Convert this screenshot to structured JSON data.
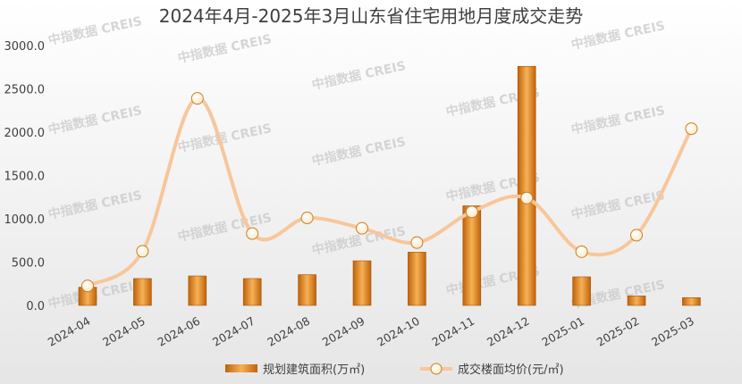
{
  "watermark": "中指数据 CREIS",
  "colors": {
    "bar_dark": "#c0620a",
    "bar_light": "#f6b255",
    "line": "#f8c69a",
    "marker_fill": "#fbe7c8",
    "marker_stroke": "#c8801e"
  },
  "chart_data": {
    "type": "bar+line",
    "title": "2024年4月-2025年3月山东省住宅用地月度成交走势",
    "categories": [
      "2024-04",
      "2024-05",
      "2024-06",
      "2024-07",
      "2024-08",
      "2024-09",
      "2024-10",
      "2024-11",
      "2024-12",
      "2025-01",
      "2025-02",
      "2025-03"
    ],
    "y_ticks": [
      "0.0",
      "500.0",
      "1000.0",
      "1500.0",
      "2000.0",
      "2500.0",
      "3000.0"
    ],
    "ylim": [
      0,
      3000
    ],
    "series": [
      {
        "name": "规划建筑面积(万㎡)",
        "type": "bar",
        "values": [
          210,
          310,
          340,
          310,
          355,
          515,
          615,
          1150,
          2760,
          330,
          110,
          90
        ]
      },
      {
        "name": "成交楼面均价(元/㎡)",
        "type": "line",
        "values": [
          225,
          625,
          2390,
          830,
          1010,
          890,
          725,
          1080,
          1240,
          620,
          810,
          2040
        ]
      }
    ],
    "grid": false,
    "legend_position": "bottom"
  }
}
